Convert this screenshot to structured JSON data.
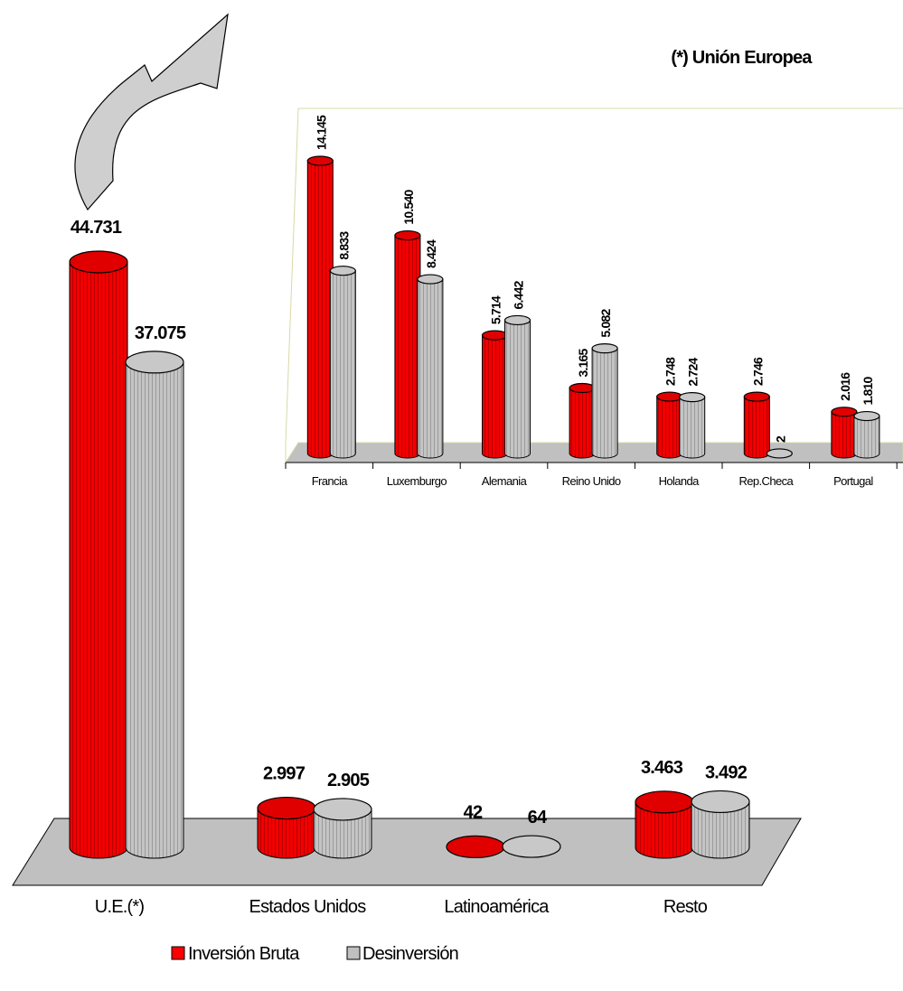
{
  "colors": {
    "inversion": "#ff0000",
    "desinversion": "#c0c0c0",
    "floor": "#c0c0c0"
  },
  "legend": {
    "inversion": "Inversión Bruta",
    "desinversion": "Desinversión"
  },
  "chart_data": [
    {
      "type": "bar",
      "categories": [
        "U.E.(*)",
        "Estados Unidos",
        "Latinoamérica",
        "Resto"
      ],
      "series": [
        {
          "name": "Inversión Bruta",
          "values": [
            44731,
            2997,
            42,
            3463
          ],
          "labels": [
            "44.731",
            "2.997",
            "42",
            "3.463"
          ]
        },
        {
          "name": "Desinversión",
          "values": [
            37075,
            2905,
            64,
            3492
          ],
          "labels": [
            "37.075",
            "2.905",
            "64",
            "3.492"
          ]
        }
      ],
      "legend_position": "bottom"
    },
    {
      "type": "bar",
      "title": "(*) Unión Europea",
      "categories": [
        "Francia",
        "Luxemburgo",
        "Alemania",
        "Reino Unido",
        "Holanda",
        "Rep.Checa",
        "Portugal"
      ],
      "series": [
        {
          "name": "Inversión Bruta",
          "values": [
            14145,
            10540,
            5714,
            3165,
            2748,
            2746,
            2016
          ],
          "labels": [
            "14.145",
            "10.540",
            "5.714",
            "3.165",
            "2.748",
            "2.746",
            "2.016"
          ]
        },
        {
          "name": "Desinversión",
          "values": [
            8833,
            8424,
            6442,
            5082,
            2724,
            2,
            1810
          ],
          "labels": [
            "8.833",
            "8.424",
            "6.442",
            "5.082",
            "2.724",
            "2",
            "1.810"
          ]
        }
      ]
    }
  ]
}
